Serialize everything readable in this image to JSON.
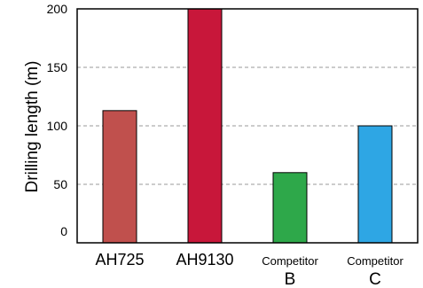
{
  "chart_data": {
    "type": "bar",
    "title": "",
    "xlabel": "",
    "ylabel": "Drilling length (m)",
    "categories": [
      {
        "line1": "AH725",
        "line2": ""
      },
      {
        "line1": "AH9130",
        "line2": ""
      },
      {
        "line1": "Competitor",
        "line2": "B"
      },
      {
        "line1": "Competitor",
        "line2": "C"
      }
    ],
    "values": [
      113,
      200,
      60,
      100
    ],
    "colors": [
      "#c0504d",
      "#c8173a",
      "#2ea84a",
      "#2ea6e4"
    ],
    "ylim": [
      0,
      200
    ],
    "yticks": [
      0,
      50,
      100,
      150,
      200
    ],
    "grid": "horizontal-dashed"
  }
}
